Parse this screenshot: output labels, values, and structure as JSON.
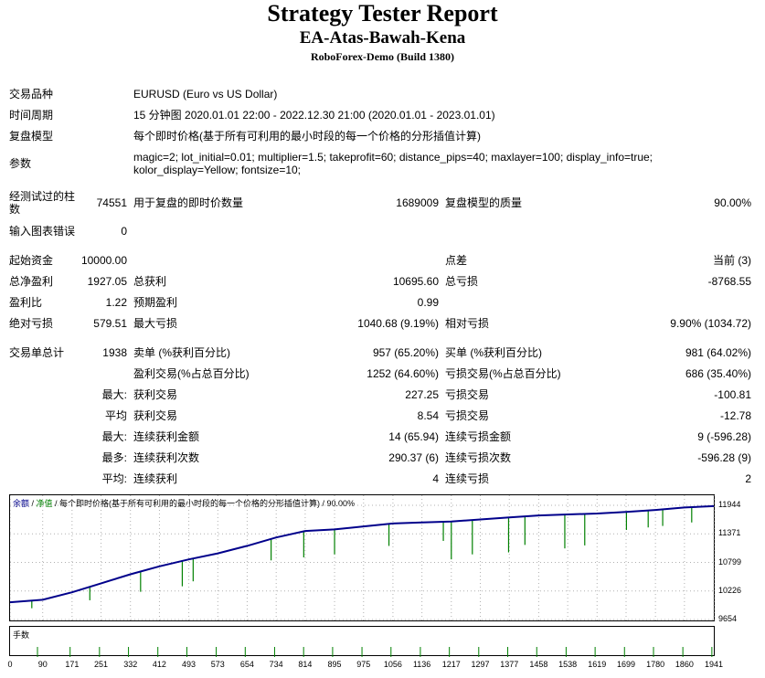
{
  "report": {
    "title": "Strategy Tester Report",
    "ea_name": "EA-Atas-Bawah-Kena",
    "server": "RoboForex-Demo (Build 1380)"
  },
  "settings": {
    "symbol_label": "交易品种",
    "symbol_value": "EURUSD (Euro vs US Dollar)",
    "period_label": "时间周期",
    "period_value": "15 分钟图 2020.01.01 22:00 - 2022.12.30 21:00 (2020.01.01 - 2023.01.01)",
    "model_label": "复盘模型",
    "model_value": "每个即时价格(基于所有可利用的最小时段的每一个价格的分形插值计算)",
    "params_label": "参数",
    "params_line1": "magic=2; lot_initial=0.01; multiplier=1.5; takeprofit=60; distance_pips=40; maxlayer=100; display_info=true;",
    "params_line2": "kolor_display=Yellow; fontsize=10;"
  },
  "stats": {
    "bars_label_1": "经测试过的柱",
    "bars_label_2": "数",
    "bars_value": "74551",
    "ticks_label": "用于复盘的即时价数量",
    "ticks_value": "1689009",
    "quality_label": "复盘模型的质量",
    "quality_value": "90.00%",
    "errors_label": "输入图表错误",
    "errors_value": "0",
    "deposit_label": "起始资金",
    "deposit_value": "10000.00",
    "spread_label": "点差",
    "spread_value": "当前 (3)",
    "net_profit_label": "总净盈利",
    "net_profit_value": "1927.05",
    "gross_profit_label": "总获利",
    "gross_profit_value": "10695.60",
    "gross_loss_label": "总亏损",
    "gross_loss_value": "-8768.55",
    "profit_factor_label": "盈利比",
    "profit_factor_value": "1.22",
    "expected_payoff_label": "预期盈利",
    "expected_payoff_value": "0.99",
    "abs_drawdown_label": "绝对亏损",
    "abs_drawdown_value": "579.51",
    "max_drawdown_label": "最大亏损",
    "max_drawdown_value": "1040.68 (9.19%)",
    "rel_drawdown_label": "相对亏损",
    "rel_drawdown_value": "9.90% (1034.72)",
    "total_trades_label": "交易单总计",
    "total_trades_value": "1938",
    "short_label": "卖单 (%获利百分比)",
    "short_value": "957 (65.20%)",
    "long_label": "买单 (%获利百分比)",
    "long_value": "981 (64.02%)",
    "profit_trades_label": "盈利交易(%占总百分比)",
    "profit_trades_value": "1252 (64.60%)",
    "loss_trades_label": "亏损交易(%占总百分比)",
    "loss_trades_value": "686 (35.40%)",
    "largest_label": "最大:",
    "largest_profit_label": "获利交易",
    "largest_profit_value": "227.25",
    "largest_loss_label": "亏损交易",
    "largest_loss_value": "-100.81",
    "average_label": "平均",
    "average_profit_label": "获利交易",
    "average_profit_value": "8.54",
    "average_loss_label": "亏损交易",
    "average_loss_value": "-12.78",
    "max2_label": "最大:",
    "max_consec_wins_money_label": "连续获利金额",
    "max_consec_wins_money_value": "14 (65.94)",
    "max_consec_losses_money_label": "连续亏损金额",
    "max_consec_losses_money_value": "9 (-596.28)",
    "max3_label": "最多:",
    "max_consec_profit_count_label": "连续获利次数",
    "max_consec_profit_count_value": "290.37 (6)",
    "max_consec_loss_count_label": "连续亏损次数",
    "max_consec_loss_count_value": "-596.28 (9)",
    "avg2_label": "平均:",
    "avg_consec_wins_label": "连续获利",
    "avg_consec_wins_value": "4",
    "avg_consec_losses_label": "连续亏损",
    "avg_consec_losses_value": "2"
  },
  "chart_caption": {
    "balance": "余额",
    "sep1": " / ",
    "equity": "净值",
    "rest": " / 每个即时价格(基于所有可利用的最小时段的每一个价格的分形插值计算) / 90.00%"
  },
  "lots_caption": "手数",
  "colors": {
    "balance": "#00008b",
    "equity": "#008000",
    "lots": "#008000"
  },
  "chart_data": {
    "type": "line",
    "series": [
      {
        "name": "余额",
        "color": "#00008b"
      },
      {
        "name": "净值",
        "color": "#008000"
      }
    ],
    "yticks": [
      "11944",
      "11371",
      "10799",
      "10226",
      "9654"
    ],
    "ylim": [
      9654,
      11944
    ],
    "xticks": [
      "0",
      "90",
      "171",
      "251",
      "332",
      "412",
      "493",
      "573",
      "654",
      "734",
      "814",
      "895",
      "975",
      "1056",
      "1136",
      "1217",
      "1297",
      "1377",
      "1458",
      "1538",
      "1619",
      "1699",
      "1780",
      "1860",
      "1941"
    ],
    "xlim": [
      0,
      1941
    ],
    "balance_points": [
      [
        0,
        10000
      ],
      [
        90,
        10050
      ],
      [
        171,
        10200
      ],
      [
        251,
        10380
      ],
      [
        332,
        10560
      ],
      [
        412,
        10720
      ],
      [
        493,
        10860
      ],
      [
        573,
        10980
      ],
      [
        654,
        11130
      ],
      [
        734,
        11300
      ],
      [
        814,
        11430
      ],
      [
        895,
        11460
      ],
      [
        975,
        11520
      ],
      [
        1056,
        11580
      ],
      [
        1136,
        11600
      ],
      [
        1217,
        11620
      ],
      [
        1297,
        11660
      ],
      [
        1377,
        11700
      ],
      [
        1458,
        11740
      ],
      [
        1538,
        11760
      ],
      [
        1619,
        11780
      ],
      [
        1699,
        11810
      ],
      [
        1780,
        11850
      ],
      [
        1860,
        11900
      ],
      [
        1941,
        11927
      ]
    ],
    "equity_dips": [
      [
        60,
        9880
      ],
      [
        220,
        10040
      ],
      [
        360,
        10210
      ],
      [
        475,
        10320
      ],
      [
        505,
        10420
      ],
      [
        720,
        10840
      ],
      [
        810,
        10900
      ],
      [
        895,
        10960
      ],
      [
        1045,
        11130
      ],
      [
        1195,
        11230
      ],
      [
        1217,
        10860
      ],
      [
        1275,
        10960
      ],
      [
        1375,
        11000
      ],
      [
        1420,
        11150
      ],
      [
        1530,
        11080
      ],
      [
        1585,
        11140
      ],
      [
        1700,
        11450
      ],
      [
        1760,
        11500
      ],
      [
        1800,
        11530
      ],
      [
        1880,
        11600
      ]
    ],
    "lots_caption": "手数"
  }
}
